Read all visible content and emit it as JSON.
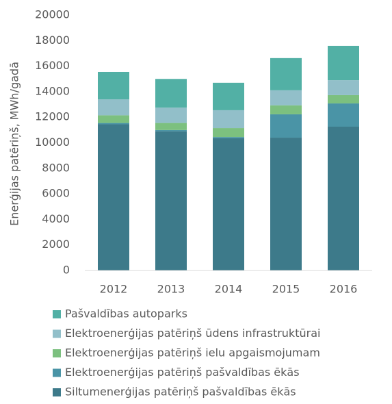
{
  "chart_data": {
    "type": "stacked_bar",
    "ylabel": "Enerģijas patēriņš, MWh/gadā",
    "categories": [
      "2012",
      "2013",
      "2014",
      "2015",
      "2016"
    ],
    "series": [
      {
        "name": "Siltumenerģijas patēriņš pašvaldības ēkās",
        "color": "#3d7a8a",
        "values": [
          11450,
          10900,
          10350,
          10400,
          11260
        ]
      },
      {
        "name": "Elektroenerģijas patēriņš pašvaldības ēkās",
        "color": "#4a94a6",
        "values": [
          100,
          100,
          100,
          1830,
          1820
        ]
      },
      {
        "name": "Elektroenerģijas patēriņš ielu apgaismojumam",
        "color": "#7cc07f",
        "values": [
          600,
          550,
          700,
          700,
          650
        ]
      },
      {
        "name": "Elektroenerģijas patēriņš ūdens infrastruktūrai",
        "color": "#92bfc9",
        "values": [
          1250,
          1200,
          1400,
          1180,
          1170
        ]
      },
      {
        "name": "Pašvaldības autoparks",
        "color": "#52b0a5",
        "values": [
          2150,
          2250,
          2150,
          2520,
          2690
        ]
      }
    ],
    "ylim": [
      0,
      20000
    ],
    "yticks": [
      0,
      2000,
      4000,
      6000,
      8000,
      10000,
      12000,
      14000,
      16000,
      18000,
      20000
    ],
    "grid": false,
    "legend": "bottom"
  }
}
